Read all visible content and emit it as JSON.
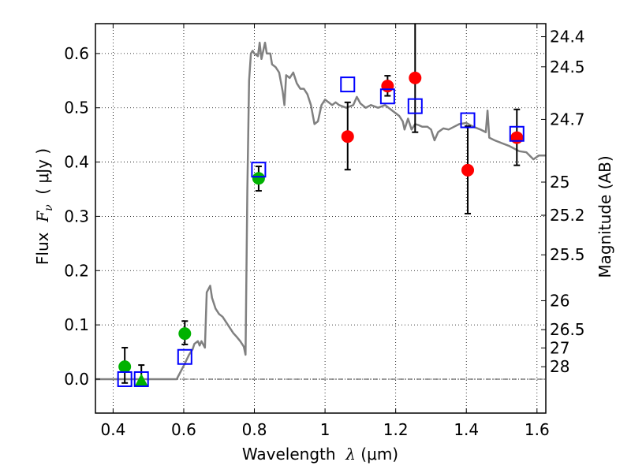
{
  "chart_data": {
    "type": "scatter",
    "title": "",
    "xlabel": "Wavelength  λ (μm)",
    "ylabel": "Flux  Fν  ( μJy )",
    "ylabel_parts": {
      "prefix": "Flux  ",
      "symbol": "F",
      "subscript": "ν",
      "unit": "  ( μJy )"
    },
    "xlabel_parts": {
      "prefix": "Wavelength  ",
      "symbol": "λ",
      "unit": " (μm)"
    },
    "y2label": "Magnitude (AB)",
    "xlim": [
      0.35,
      1.625
    ],
    "ylim": [
      -0.0625,
      0.655
    ],
    "grid": true,
    "xticks": [
      0.4,
      0.6,
      0.8,
      1.0,
      1.2,
      1.4,
      1.6
    ],
    "xtick_labels": [
      "0.4",
      "0.6",
      "0.8",
      "1",
      "1.2",
      "1.4",
      "1.6"
    ],
    "yticks": [
      0.0,
      0.1,
      0.2,
      0.3,
      0.4,
      0.5,
      0.6
    ],
    "ytick_labels": [
      "0.0",
      "0.1",
      "0.2",
      "0.3",
      "0.4",
      "0.5",
      "0.6"
    ],
    "y2ticks": [
      {
        "label": "24.4",
        "mag": 24.4
      },
      {
        "label": "24.5",
        "mag": 24.5
      },
      {
        "label": "24.7",
        "mag": 24.7
      },
      {
        "label": "25",
        "mag": 25.0
      },
      {
        "label": "25.2",
        "mag": 25.2
      },
      {
        "label": "25.5",
        "mag": 25.5
      },
      {
        "label": "26",
        "mag": 26.0
      },
      {
        "label": "26.5",
        "mag": 26.5
      },
      {
        "label": "27",
        "mag": 27.0
      },
      {
        "label": "28",
        "mag": 28.0
      }
    ],
    "ab_zero_point_ujy": 23.9,
    "series": [
      {
        "name": "model-spectrum",
        "kind": "line",
        "color": "#808080",
        "x": [
          0.35,
          0.58,
          0.6,
          0.615,
          0.625,
          0.63,
          0.64,
          0.645,
          0.65,
          0.66,
          0.665,
          0.675,
          0.68,
          0.69,
          0.7,
          0.71,
          0.72,
          0.73,
          0.74,
          0.75,
          0.76,
          0.77,
          0.775,
          0.78,
          0.785,
          0.79,
          0.795,
          0.8,
          0.81,
          0.815,
          0.82,
          0.83,
          0.835,
          0.845,
          0.85,
          0.86,
          0.87,
          0.88,
          0.885,
          0.89,
          0.9,
          0.91,
          0.92,
          0.93,
          0.94,
          0.95,
          0.96,
          0.97,
          0.98,
          0.99,
          1.0,
          1.01,
          1.02,
          1.03,
          1.04,
          1.06,
          1.08,
          1.09,
          1.1,
          1.115,
          1.13,
          1.15,
          1.17,
          1.19,
          1.2,
          1.21,
          1.22,
          1.225,
          1.235,
          1.245,
          1.255,
          1.265,
          1.275,
          1.29,
          1.3,
          1.31,
          1.32,
          1.335,
          1.35,
          1.365,
          1.38,
          1.4,
          1.42,
          1.44,
          1.455,
          1.46,
          1.465,
          1.48,
          1.5,
          1.52,
          1.55,
          1.57,
          1.59,
          1.605,
          1.625
        ],
        "y": [
          0.0,
          0.0,
          0.025,
          0.045,
          0.055,
          0.065,
          0.07,
          0.062,
          0.07,
          0.058,
          0.16,
          0.172,
          0.15,
          0.13,
          0.12,
          0.115,
          0.105,
          0.095,
          0.085,
          0.078,
          0.07,
          0.06,
          0.045,
          0.35,
          0.55,
          0.6,
          0.605,
          0.6,
          0.595,
          0.62,
          0.59,
          0.62,
          0.6,
          0.6,
          0.58,
          0.575,
          0.565,
          0.53,
          0.505,
          0.56,
          0.555,
          0.565,
          0.545,
          0.535,
          0.535,
          0.525,
          0.505,
          0.47,
          0.475,
          0.505,
          0.515,
          0.51,
          0.505,
          0.51,
          0.505,
          0.5,
          0.505,
          0.52,
          0.508,
          0.5,
          0.505,
          0.5,
          0.505,
          0.495,
          0.49,
          0.485,
          0.475,
          0.46,
          0.48,
          0.46,
          0.47,
          0.468,
          0.465,
          0.465,
          0.46,
          0.44,
          0.455,
          0.462,
          0.46,
          0.465,
          0.47,
          0.472,
          0.465,
          0.46,
          0.455,
          0.495,
          0.445,
          0.44,
          0.435,
          0.43,
          0.42,
          0.418,
          0.405,
          0.412,
          0.412
        ]
      },
      {
        "name": "observed-ground",
        "kind": "errorbar-points",
        "marker": "circle",
        "color": "#00b200",
        "points": [
          {
            "x": 0.433,
            "y": 0.023,
            "ylo": -0.007,
            "yhi": 0.058
          },
          {
            "x": 0.603,
            "y": 0.084,
            "ylo": 0.064,
            "yhi": 0.107
          },
          {
            "x": 0.812,
            "y": 0.37,
            "ylo": 0.347,
            "yhi": 0.392
          }
        ]
      },
      {
        "name": "observed-upper-limit",
        "kind": "errorbar-points",
        "marker": "triangle",
        "color": "#00b200",
        "points": [
          {
            "x": 0.48,
            "y": -0.003,
            "ylo": -0.003,
            "yhi": 0.026
          }
        ]
      },
      {
        "name": "observed-ir",
        "kind": "errorbar-points",
        "marker": "circle",
        "color": "#ff0000",
        "points": [
          {
            "x": 1.064,
            "y": 0.447,
            "ylo": 0.386,
            "yhi": 0.51
          },
          {
            "x": 1.177,
            "y": 0.54,
            "ylo": 0.522,
            "yhi": 0.559
          },
          {
            "x": 1.255,
            "y": 0.555,
            "ylo": 0.455,
            "yhi": 0.7
          },
          {
            "x": 1.404,
            "y": 0.385,
            "ylo": 0.305,
            "yhi": 0.466
          },
          {
            "x": 1.543,
            "y": 0.445,
            "ylo": 0.394,
            "yhi": 0.497
          }
        ]
      },
      {
        "name": "model-photometry",
        "kind": "points",
        "marker": "open-square",
        "color": "#0000ff",
        "points": [
          {
            "x": 0.433,
            "y": 0.0
          },
          {
            "x": 0.48,
            "y": 0.0
          },
          {
            "x": 0.603,
            "y": 0.041
          },
          {
            "x": 0.812,
            "y": 0.386
          },
          {
            "x": 1.064,
            "y": 0.543
          },
          {
            "x": 1.177,
            "y": 0.521
          },
          {
            "x": 1.255,
            "y": 0.503
          },
          {
            "x": 1.404,
            "y": 0.477
          },
          {
            "x": 1.543,
            "y": 0.452
          }
        ]
      }
    ],
    "zero_line": {
      "y": 0.0,
      "style": "dash-dot"
    }
  }
}
